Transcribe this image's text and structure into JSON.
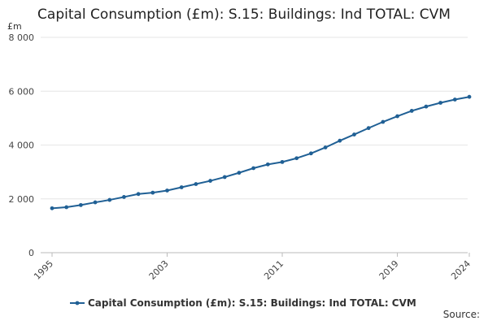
{
  "chart_data": {
    "type": "line",
    "title": "Capital Consumption (£m): S.15: Buildings: Ind TOTAL: CVM",
    "ylabel": "£m",
    "xlabel": "",
    "ylim": [
      0,
      8000
    ],
    "yticks": [
      0,
      2000,
      4000,
      6000,
      8000
    ],
    "ytick_labels": [
      "0",
      "2 000",
      "4 000",
      "6 000",
      "8 000"
    ],
    "xticks": [
      1995,
      2003,
      2011,
      2019,
      2024
    ],
    "xtick_labels": [
      "1995",
      "2003",
      "2011",
      "2019",
      "2024"
    ],
    "grid": true,
    "legend": "bottom",
    "series": [
      {
        "name": "Capital Consumption (£m): S.15: Buildings: Ind TOTAL: CVM",
        "color": "#206095",
        "x": [
          1995,
          1996,
          1997,
          1998,
          1999,
          2000,
          2001,
          2002,
          2003,
          2004,
          2005,
          2006,
          2007,
          2008,
          2009,
          2010,
          2011,
          2012,
          2013,
          2014,
          2015,
          2016,
          2017,
          2018,
          2019,
          2020,
          2021,
          2022,
          2023,
          2024
        ],
        "values": [
          1650,
          1690,
          1770,
          1870,
          1960,
          2070,
          2180,
          2230,
          2310,
          2430,
          2550,
          2670,
          2810,
          2970,
          3140,
          3280,
          3370,
          3510,
          3690,
          3910,
          4160,
          4390,
          4630,
          4860,
          5070,
          5270,
          5430,
          5570,
          5690,
          5790
        ]
      }
    ]
  },
  "footer": {
    "source_label": "Source:"
  }
}
